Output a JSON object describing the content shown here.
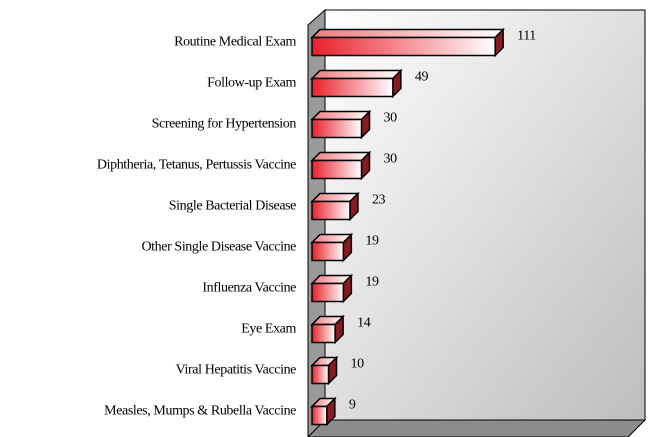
{
  "chart_data": {
    "type": "bar3d_horizontal",
    "categories": [
      "Routine Medical Exam",
      "Follow-up Exam",
      "Screening for Hypertension",
      "Diphtheria, Tetanus, Pertussis Vaccine",
      "Single Bacterial Disease",
      "Other Single Disease Vaccine",
      "Influenza Vaccine",
      "Eye Exam",
      "Viral Hepatitis Vaccine",
      "Measles, Mumps & Rubella Vaccine"
    ],
    "values": [
      111,
      49,
      30,
      30,
      23,
      19,
      19,
      14,
      10,
      9
    ],
    "color": "#e8202a",
    "xlim": [
      0,
      200
    ]
  }
}
